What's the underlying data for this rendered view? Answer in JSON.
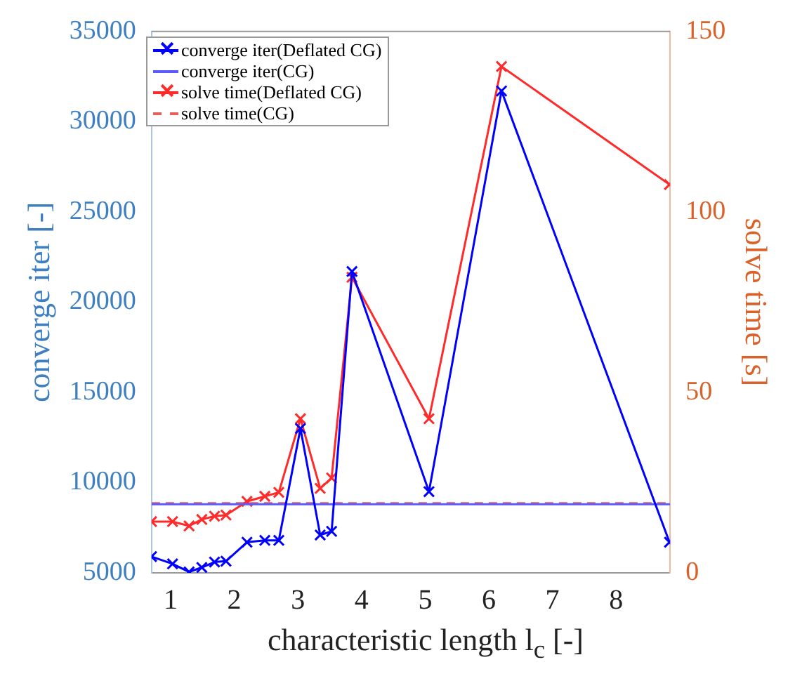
{
  "chart_data": {
    "type": "line",
    "xlabel": "characteristic length l$_{c}$ [-]",
    "ylabel": "converge iter [-]",
    "y2label": "solve time [s]",
    "xlim": [
      0.7,
      8.85
    ],
    "xticks": [
      1,
      2,
      3,
      4,
      5,
      6,
      7,
      8
    ],
    "ylim": [
      5000,
      35000
    ],
    "yticks": [
      5000,
      10000,
      15000,
      20000,
      25000,
      30000,
      35000
    ],
    "y2lim": [
      0,
      150
    ],
    "y2ticks": [
      0,
      50,
      100,
      150
    ],
    "grid": false,
    "legend": "top left",
    "series": [
      {
        "name": "converge iter(Deflated CG)",
        "color": "#0000ff",
        "marker": "cross",
        "line_style": "solid",
        "x": [
          0.7,
          1.03,
          1.29,
          1.49,
          1.69,
          1.87,
          2.2,
          2.48,
          2.7,
          3.04,
          3.35,
          3.53,
          3.85,
          5.06,
          6.2,
          8.84
        ],
        "values": [
          5900,
          5500,
          5050,
          5300,
          5600,
          5650,
          6700,
          6800,
          6800,
          13000,
          7100,
          7300,
          21700,
          9500,
          31700,
          6700
        ]
      },
      {
        "name": "converge iter(CG)",
        "color": "#5a5aff",
        "marker": "none",
        "line_style": "solid",
        "x": [
          0.7,
          8.85
        ],
        "values": [
          8800,
          8800
        ]
      },
      {
        "name": "solve time(Deflated CG)",
        "color": "#ff2a2a",
        "marker": "cross",
        "line_style": "solid",
        "axis": "y2",
        "x": [
          0.7,
          1.03,
          1.29,
          1.49,
          1.69,
          1.87,
          2.2,
          2.48,
          2.7,
          3.04,
          3.35,
          3.53,
          3.85,
          5.06,
          6.2,
          8.84
        ],
        "values": [
          14.2,
          14.2,
          13.0,
          14.8,
          15.7,
          16.0,
          19.8,
          21.2,
          22.3,
          42.7,
          23.4,
          26.3,
          81.9,
          42.7,
          140.3,
          107.6
        ]
      },
      {
        "name": "solve time(CG)",
        "color": "#e8605a",
        "marker": "none",
        "line_style": "dashed",
        "axis": "y2",
        "x": [
          0.7,
          8.85
        ],
        "values": [
          19.3,
          19.3
        ]
      }
    ]
  }
}
